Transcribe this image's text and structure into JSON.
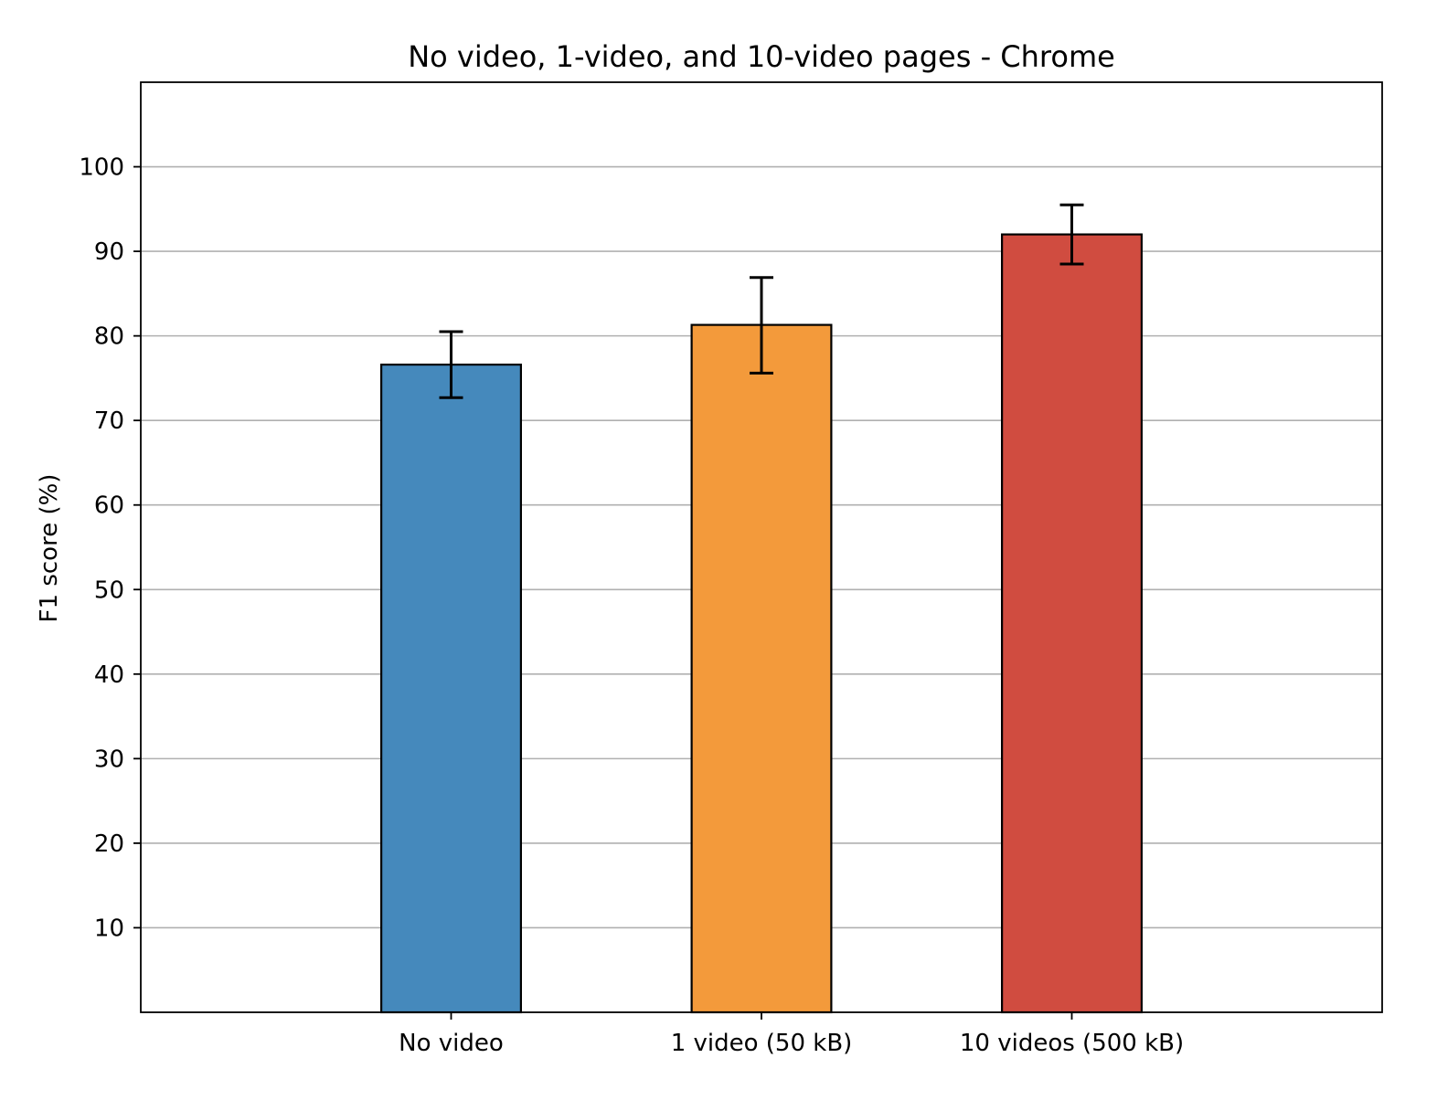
{
  "chart_data": {
    "type": "bar",
    "title": "No video, 1-video, and 10-video pages - Chrome",
    "xlabel": "",
    "ylabel": "F1 score (%)",
    "categories": [
      "No video",
      "1 video (50 kB)",
      "10 videos (500 kB)"
    ],
    "values": [
      76.6,
      81.3,
      92.0
    ],
    "error_low": [
      72.7,
      75.6,
      88.5
    ],
    "error_high": [
      80.5,
      86.9,
      95.5
    ],
    "colors": [
      "#4589bc",
      "#f39a3b",
      "#d04c40"
    ],
    "ylim": [
      0,
      110
    ],
    "yticks": [
      10,
      20,
      30,
      40,
      50,
      60,
      70,
      80,
      90,
      100
    ],
    "grid": "horizontal"
  }
}
